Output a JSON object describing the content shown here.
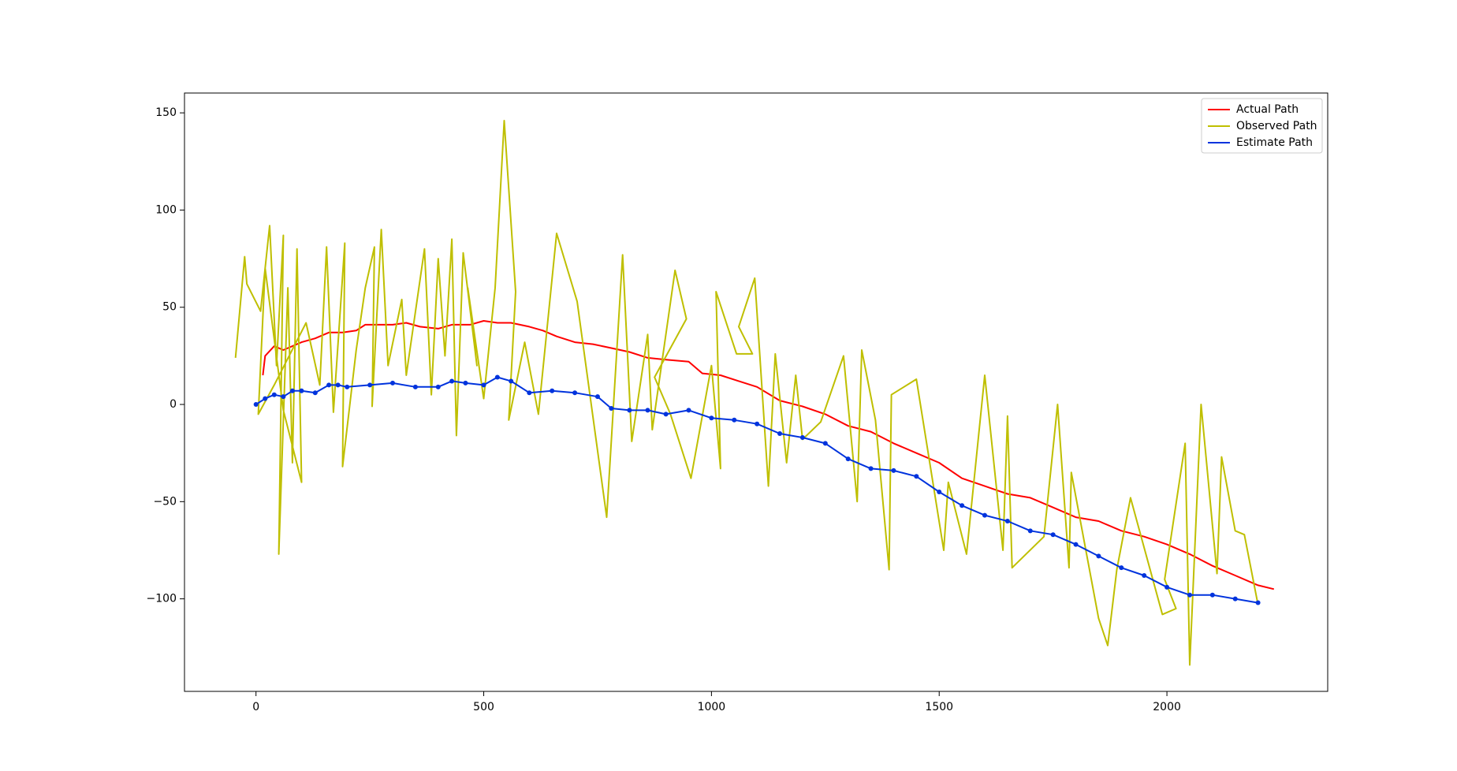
{
  "chart_data": {
    "type": "line",
    "xlim": [
      -157,
      2353
    ],
    "ylim": [
      -147.6,
      160.2
    ],
    "xticks": [
      0,
      500,
      1000,
      1500,
      2000
    ],
    "yticks": [
      {
        "value": -100,
        "label": "−100"
      },
      {
        "value": -50,
        "label": "−50"
      },
      0,
      50,
      100,
      150
    ],
    "legend": "upper right",
    "grid": false,
    "series": [
      {
        "name": "Actual Path",
        "color": "#ff0000",
        "markers": false,
        "x": [
          15,
          20,
          40,
          60,
          80,
          100,
          130,
          160,
          190,
          220,
          240,
          270,
          300,
          330,
          360,
          400,
          430,
          470,
          500,
          530,
          560,
          600,
          630,
          660,
          700,
          740,
          780,
          820,
          860,
          900,
          950,
          980,
          1020,
          1060,
          1100,
          1150,
          1200,
          1250,
          1300,
          1350,
          1400,
          1450,
          1500,
          1550,
          1600,
          1650,
          1700,
          1750,
          1800,
          1850,
          1900,
          1950,
          2000,
          2050,
          2100,
          2150,
          2200,
          2235
        ],
        "values": [
          15,
          25,
          30,
          28,
          30,
          32,
          34,
          37,
          37,
          38,
          41,
          41,
          41,
          42,
          40,
          39,
          41,
          41,
          43,
          42,
          42,
          40,
          38,
          35,
          32,
          31,
          29,
          27,
          24,
          23,
          22,
          16,
          15,
          12,
          9,
          2,
          -1,
          -5,
          -11,
          -14,
          -20,
          -25,
          -30,
          -38,
          -42,
          -46,
          -48,
          -53,
          -58,
          -60,
          -65,
          -68,
          -72,
          -77,
          -83,
          -88,
          -93,
          -95
        ]
      },
      {
        "name": "Observed Path",
        "color": "#bfbf00",
        "markers": false,
        "x": [
          -45,
          -25,
          -20,
          10,
          30,
          45,
          60,
          50,
          70,
          80,
          90,
          100,
          60,
          20,
          5,
          40,
          110,
          140,
          155,
          170,
          195,
          190,
          220,
          240,
          260,
          255,
          275,
          290,
          320,
          330,
          370,
          385,
          400,
          415,
          430,
          440,
          455,
          485,
          465,
          500,
          525,
          545,
          570,
          555,
          590,
          620,
          660,
          705,
          770,
          805,
          825,
          860,
          870,
          920,
          945,
          875,
          910,
          955,
          1000,
          1020,
          1010,
          1055,
          1090,
          1060,
          1095,
          1125,
          1140,
          1165,
          1185,
          1200,
          1240,
          1290,
          1320,
          1330,
          1360,
          1390,
          1395,
          1450,
          1510,
          1520,
          1560,
          1600,
          1640,
          1650,
          1660,
          1730,
          1760,
          1785,
          1790,
          1850,
          1870,
          1890,
          1920,
          1990,
          2020,
          1995,
          2040,
          2050,
          2075,
          2110,
          2120,
          2150,
          2170,
          2200
        ],
        "values": [
          24,
          76,
          62,
          48,
          92,
          20,
          87,
          -77,
          60,
          -30,
          80,
          -40,
          -3,
          70,
          -5,
          10,
          42,
          10,
          81,
          -4,
          83,
          -32,
          28,
          60,
          81,
          -1,
          90,
          20,
          54,
          15,
          80,
          5,
          75,
          25,
          85,
          -16,
          78,
          20,
          60,
          3,
          60,
          146,
          58,
          -8,
          32,
          -5,
          88,
          53,
          -58,
          77,
          -19,
          36,
          -13,
          69,
          44,
          14,
          -5,
          -38,
          20,
          -33,
          58,
          26,
          26,
          40,
          65,
          -42,
          26,
          -30,
          15,
          -18,
          -9,
          25,
          -50,
          28,
          -8,
          -85,
          5,
          13,
          -75,
          -40,
          -77,
          15,
          -75,
          -6,
          -84,
          -68,
          0,
          -84,
          -35,
          -110,
          -124,
          -85,
          -48,
          -108,
          -105,
          -90,
          -20,
          -134,
          0,
          -87,
          -27,
          -65,
          -67,
          -103
        ]
      },
      {
        "name": "Estimate Path",
        "color": "#0033dd",
        "markers": true,
        "x": [
          0,
          20,
          40,
          60,
          80,
          100,
          130,
          160,
          180,
          200,
          250,
          300,
          350,
          400,
          430,
          460,
          500,
          530,
          560,
          600,
          650,
          700,
          750,
          780,
          820,
          860,
          900,
          950,
          1000,
          1050,
          1100,
          1150,
          1200,
          1250,
          1300,
          1350,
          1400,
          1450,
          1500,
          1550,
          1600,
          1650,
          1700,
          1750,
          1800,
          1850,
          1900,
          1950,
          2000,
          2050,
          2100,
          2150,
          2200
        ],
        "values": [
          0,
          3,
          5,
          4,
          7,
          7,
          6,
          10,
          10,
          9,
          10,
          11,
          9,
          9,
          12,
          11,
          10,
          14,
          12,
          6,
          7,
          6,
          4,
          -2,
          -3,
          -3,
          -5,
          -3,
          -7,
          -8,
          -10,
          -15,
          -17,
          -20,
          -28,
          -33,
          -34,
          -37,
          -45,
          -52,
          -57,
          -60,
          -65,
          -67,
          -72,
          -78,
          -84,
          -88,
          -94,
          -98,
          -98,
          -100,
          -102
        ]
      }
    ]
  }
}
